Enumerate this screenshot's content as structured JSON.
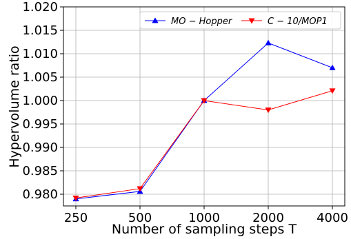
{
  "chart_data": {
    "type": "line",
    "xlabel": "Number of sampling steps T",
    "ylabel": "Hypervolume ratio",
    "categories": [
      "250",
      "500",
      "1000",
      "2000",
      "4000"
    ],
    "x_scale": "log2",
    "ylim": [
      0.9775,
      1.02
    ],
    "yticks": [
      0.98,
      0.985,
      0.99,
      0.995,
      1.0,
      1.005,
      1.01,
      1.015,
      1.02
    ],
    "ytick_labels": [
      "0.980",
      "0.985",
      "0.990",
      "0.995",
      "1.000",
      "1.005",
      "1.010",
      "1.015",
      "1.020"
    ],
    "grid": true,
    "legend_position": "top-right",
    "series": [
      {
        "name": "MO − Hopper",
        "color": "#0000ff",
        "marker": "triangle-up",
        "values": [
          0.979,
          0.9806,
          1.0,
          1.0123,
          1.007
        ]
      },
      {
        "name": "C − 10/MOP1",
        "color": "#ff0000",
        "marker": "triangle-down",
        "values": [
          0.9792,
          0.9812,
          1.0,
          0.998,
          1.0021
        ]
      }
    ]
  }
}
